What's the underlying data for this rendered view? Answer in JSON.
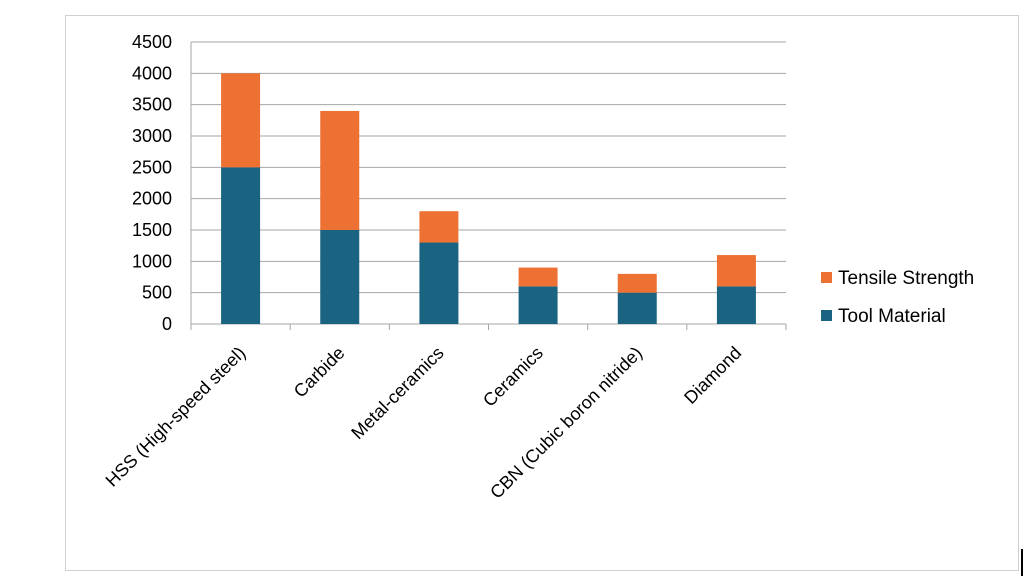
{
  "chart_data": {
    "type": "bar",
    "stacked": true,
    "title": "",
    "xlabel": "",
    "ylabel": "",
    "categories": [
      "HSS (High-speed steel)",
      "Carbide",
      "Metal-ceramics",
      "Ceramics",
      "CBN (Cubic boron nitride)",
      "Diamond"
    ],
    "series": [
      {
        "name": "Tool Material",
        "color": "#1a6482",
        "values": [
          2500,
          1500,
          1300,
          600,
          500,
          600
        ]
      },
      {
        "name": "Tensile Strength",
        "color": "#ed7133",
        "values": [
          1500,
          1900,
          500,
          300,
          300,
          500
        ]
      }
    ],
    "ylim": [
      0,
      4500
    ],
    "yticks": [
      0,
      500,
      1000,
      1500,
      2000,
      2500,
      3000,
      3500,
      4000,
      4500
    ],
    "grid": true,
    "legend_position": "right"
  }
}
